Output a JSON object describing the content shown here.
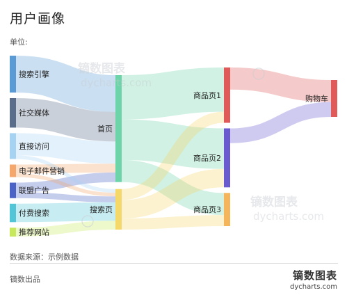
{
  "title": "用户画像",
  "unit_label": "单位:",
  "source": "数据来源：示例数据",
  "footer": {
    "left": "镝数出品",
    "brand_name": "镝数图表",
    "brand_url": "dycharts.com"
  },
  "watermark": {
    "name": "镝数图表",
    "url": "dycharts.com"
  },
  "chart_data": {
    "type": "sankey",
    "nodes": [
      {
        "name": "搜索引擎",
        "color": "#5b9bd5"
      },
      {
        "name": "社交媒体",
        "color": "#5a6e8c"
      },
      {
        "name": "直接访问",
        "color": "#a6d3f2"
      },
      {
        "name": "电子邮件营销",
        "color": "#f4a66b"
      },
      {
        "name": "联盟广告",
        "color": "#4b62c6"
      },
      {
        "name": "付费搜索",
        "color": "#52c6d6"
      },
      {
        "name": "推荐网站",
        "color": "#c8e85c"
      },
      {
        "name": "首页",
        "color": "#6dd3a8"
      },
      {
        "name": "搜索页",
        "color": "#f5d86a"
      },
      {
        "name": "商品页1",
        "color": "#e05a5a"
      },
      {
        "name": "商品页2",
        "color": "#6a5ad0"
      },
      {
        "name": "商品页3",
        "color": "#f5b55a"
      },
      {
        "name": "购物车",
        "color": "#e05a5a"
      }
    ],
    "links": [
      {
        "source": "搜索引擎",
        "target": "首页",
        "value": 50
      },
      {
        "source": "社交媒体",
        "target": "首页",
        "value": 40
      },
      {
        "source": "直接访问",
        "target": "首页",
        "value": 30
      },
      {
        "source": "电子邮件营销",
        "target": "首页",
        "value": 12
      },
      {
        "source": "联盟广告",
        "target": "首页",
        "value": 13
      },
      {
        "source": "直接访问",
        "target": "搜索页",
        "value": 5
      },
      {
        "source": "电子邮件营销",
        "target": "搜索页",
        "value": 5
      },
      {
        "source": "联盟广告",
        "target": "搜索页",
        "value": 8
      },
      {
        "source": "付费搜索",
        "target": "搜索页",
        "value": 25
      },
      {
        "source": "推荐网站",
        "target": "搜索页",
        "value": 12
      },
      {
        "source": "首页",
        "target": "商品页1",
        "value": 60
      },
      {
        "source": "首页",
        "target": "商品页2",
        "value": 55
      },
      {
        "source": "首页",
        "target": "商品页3",
        "value": 30
      },
      {
        "source": "搜索页",
        "target": "商品页1",
        "value": 15
      },
      {
        "source": "搜索页",
        "target": "商品页2",
        "value": 25
      },
      {
        "source": "搜索页",
        "target": "商品页3",
        "value": 15
      },
      {
        "source": "商品页1",
        "target": "购物车",
        "value": 30
      },
      {
        "source": "商品页2",
        "target": "购物车",
        "value": 20
      }
    ]
  }
}
